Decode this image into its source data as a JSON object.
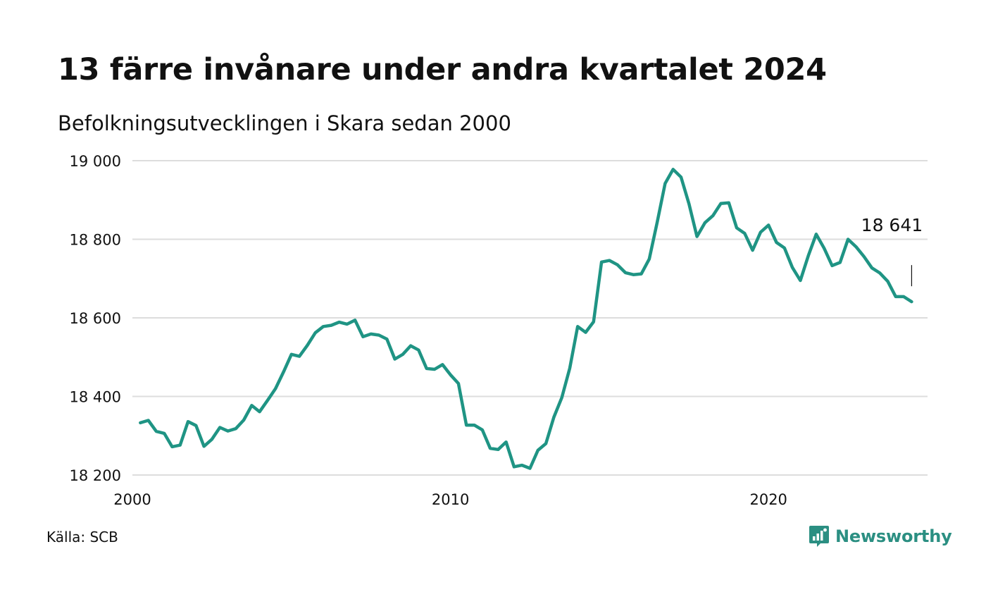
{
  "title": "13 färre invånare under andra kvartalet 2024",
  "subtitle": "Befolkningsutvecklingen i Skara sedan 2000",
  "source": "Källa: SCB",
  "brand": {
    "name": "Newsworthy",
    "icon": "newsworthy-logo-icon"
  },
  "colors": {
    "line": "#1f9484",
    "grid": "#dddddd",
    "brand": "#2b8f82"
  },
  "chart_data": {
    "type": "line",
    "title": "13 färre invånare under andra kvartalet 2024",
    "subtitle": "Befolkningsutvecklingen i Skara sedan 2000",
    "xlabel": "",
    "ylabel": "",
    "xlim": [
      2000,
      2025
    ],
    "ylim": [
      18200,
      19000
    ],
    "y_ticks": [
      19000,
      18800,
      18600,
      18400,
      18200
    ],
    "y_tick_labels": [
      "19 000",
      "18 800",
      "18 600",
      "18 400",
      "18 200"
    ],
    "x_ticks": [
      2000,
      2010,
      2020
    ],
    "x_tick_labels": [
      "2000",
      "2010",
      "2020"
    ],
    "grid": true,
    "last_value_label": "18 641",
    "x": [
      2000.25,
      2000.5,
      2000.75,
      2001.0,
      2001.25,
      2001.5,
      2001.75,
      2002.0,
      2002.25,
      2002.5,
      2002.75,
      2003.0,
      2003.25,
      2003.5,
      2003.75,
      2004.0,
      2004.25,
      2004.5,
      2004.75,
      2005.0,
      2005.25,
      2005.5,
      2005.75,
      2006.0,
      2006.25,
      2006.5,
      2006.75,
      2007.0,
      2007.25,
      2007.5,
      2007.75,
      2008.0,
      2008.25,
      2008.5,
      2008.75,
      2009.0,
      2009.25,
      2009.5,
      2009.75,
      2010.0,
      2010.25,
      2010.5,
      2010.75,
      2011.0,
      2011.25,
      2011.5,
      2011.75,
      2012.0,
      2012.25,
      2012.5,
      2012.75,
      2013.0,
      2013.25,
      2013.5,
      2013.75,
      2014.0,
      2014.25,
      2014.5,
      2014.75,
      2015.0,
      2015.25,
      2015.5,
      2015.75,
      2016.0,
      2016.25,
      2016.5,
      2016.75,
      2017.0,
      2017.25,
      2017.5,
      2017.75,
      2018.0,
      2018.25,
      2018.5,
      2018.75,
      2019.0,
      2019.25,
      2019.5,
      2019.75,
      2020.0,
      2020.25,
      2020.5,
      2020.75,
      2021.0,
      2021.25,
      2021.5,
      2021.75,
      2022.0,
      2022.25,
      2022.5,
      2022.75,
      2023.0,
      2023.25,
      2023.5,
      2023.75,
      2024.0,
      2024.25,
      2024.5
    ],
    "series": [
      {
        "values": [
          18333,
          18339,
          18311,
          18306,
          18272,
          18276,
          18336,
          18326,
          18273,
          18291,
          18321,
          18312,
          18318,
          18340,
          18377,
          18361,
          18390,
          18420,
          18462,
          18507,
          18502,
          18530,
          18562,
          18578,
          18581,
          18589,
          18584,
          18594,
          18552,
          18559,
          18556,
          18546,
          18495,
          18507,
          18529,
          18518,
          18471,
          18469,
          18481,
          18455,
          18433,
          18327,
          18327,
          18315,
          18268,
          18265,
          18284,
          18221,
          18225,
          18217,
          18263,
          18280,
          18347,
          18397,
          18472,
          18578,
          18563,
          18590,
          18742,
          18746,
          18735,
          18715,
          18710,
          18712,
          18750,
          18843,
          18942,
          18978,
          18958,
          18890,
          18807,
          18842,
          18860,
          18891,
          18893,
          18829,
          18815,
          18772,
          18818,
          18836,
          18792,
          18778,
          18728,
          18695,
          18758,
          18813,
          18777,
          18733,
          18741,
          18800,
          18781,
          18756,
          18727,
          18714,
          18693,
          18654,
          18654,
          18641
        ]
      }
    ]
  }
}
